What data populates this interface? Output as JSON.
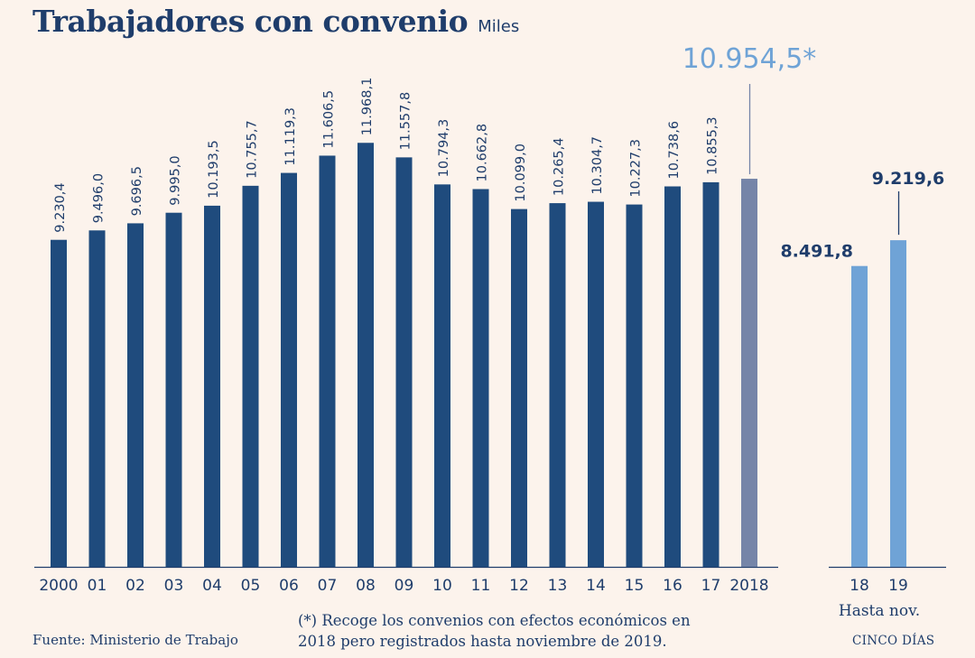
{
  "header": {
    "title": "Trabajadores con convenio",
    "unit": "Miles"
  },
  "chart_data": [
    {
      "type": "bar",
      "categories": [
        "2000",
        "01",
        "02",
        "03",
        "04",
        "05",
        "06",
        "07",
        "08",
        "09",
        "10",
        "11",
        "12",
        "13",
        "14",
        "15",
        "16",
        "17",
        "2018"
      ],
      "values": [
        9230.4,
        9496.0,
        9696.5,
        9995.0,
        10193.5,
        10755.7,
        11119.3,
        11606.5,
        11968.1,
        11557.8,
        10794.3,
        10662.8,
        10099.0,
        10265.4,
        10304.7,
        10227.3,
        10738.6,
        10855.3,
        10954.5
      ],
      "value_labels": [
        "9.230,4",
        "9.496,0",
        "9.696,5",
        "9.995,0",
        "10.193,5",
        "10.755,7",
        "11.119,3",
        "11.606,5",
        "11.968,1",
        "11.557,8",
        "10.794,3",
        "10.662,8",
        "10.099,0",
        "10.265,4",
        "10.304,7",
        "10.227,3",
        "10.738,6",
        "10.855,3",
        "10.954,5*"
      ],
      "ylim": [
        0,
        16000
      ],
      "colors": {
        "regular": "#1f4b7d",
        "highlight": "#7585a8",
        "highlight_label": "#6fa3d6"
      }
    },
    {
      "type": "bar",
      "categories": [
        "18",
        "19"
      ],
      "values": [
        8491.8,
        9219.6
      ],
      "value_labels": [
        "8.491,8",
        "9.219,6"
      ],
      "xlabel": "Hasta nov.",
      "ylim": [
        0,
        16000
      ],
      "colors": {
        "bar": "#6fa3d6",
        "label": "#1f3d6b"
      }
    }
  ],
  "footer": {
    "source": "Fuente: Ministerio de Trabajo",
    "note_line1": "(*) Recoge los convenios con efectos económicos en",
    "note_line2": "2018 pero registrados hasta noviembre de 2019.",
    "brand": "CINCO DÍAS"
  }
}
